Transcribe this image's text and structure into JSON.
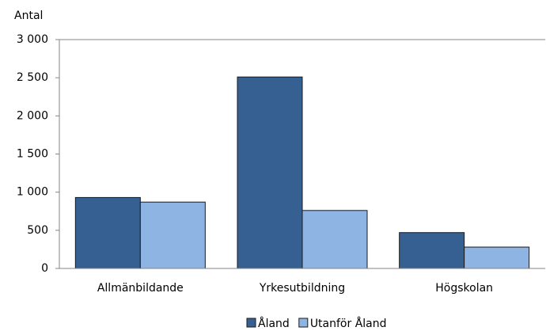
{
  "chart_data": {
    "type": "bar",
    "y_label": "Antal",
    "categories": [
      "Allmänbildande",
      "Yrkesutbildning",
      "Högskolan"
    ],
    "series": [
      {
        "name": "Åland",
        "color": "#366092",
        "values": [
          930,
          2510,
          470
        ]
      },
      {
        "name": "Utanför Åland",
        "color": "#8db4e2",
        "values": [
          870,
          760,
          280
        ]
      }
    ],
    "ylim": [
      0,
      3000
    ],
    "yticks": [
      0,
      500,
      {
        "value": 1000,
        "label": "1 000"
      },
      {
        "value": 1500,
        "label": "1 500"
      },
      {
        "value": 2000,
        "label": "2 000"
      },
      {
        "value": 2500,
        "label": "2 500"
      },
      {
        "value": 3000,
        "label": "3 000"
      }
    ],
    "grid": false,
    "legend": "bottom"
  }
}
